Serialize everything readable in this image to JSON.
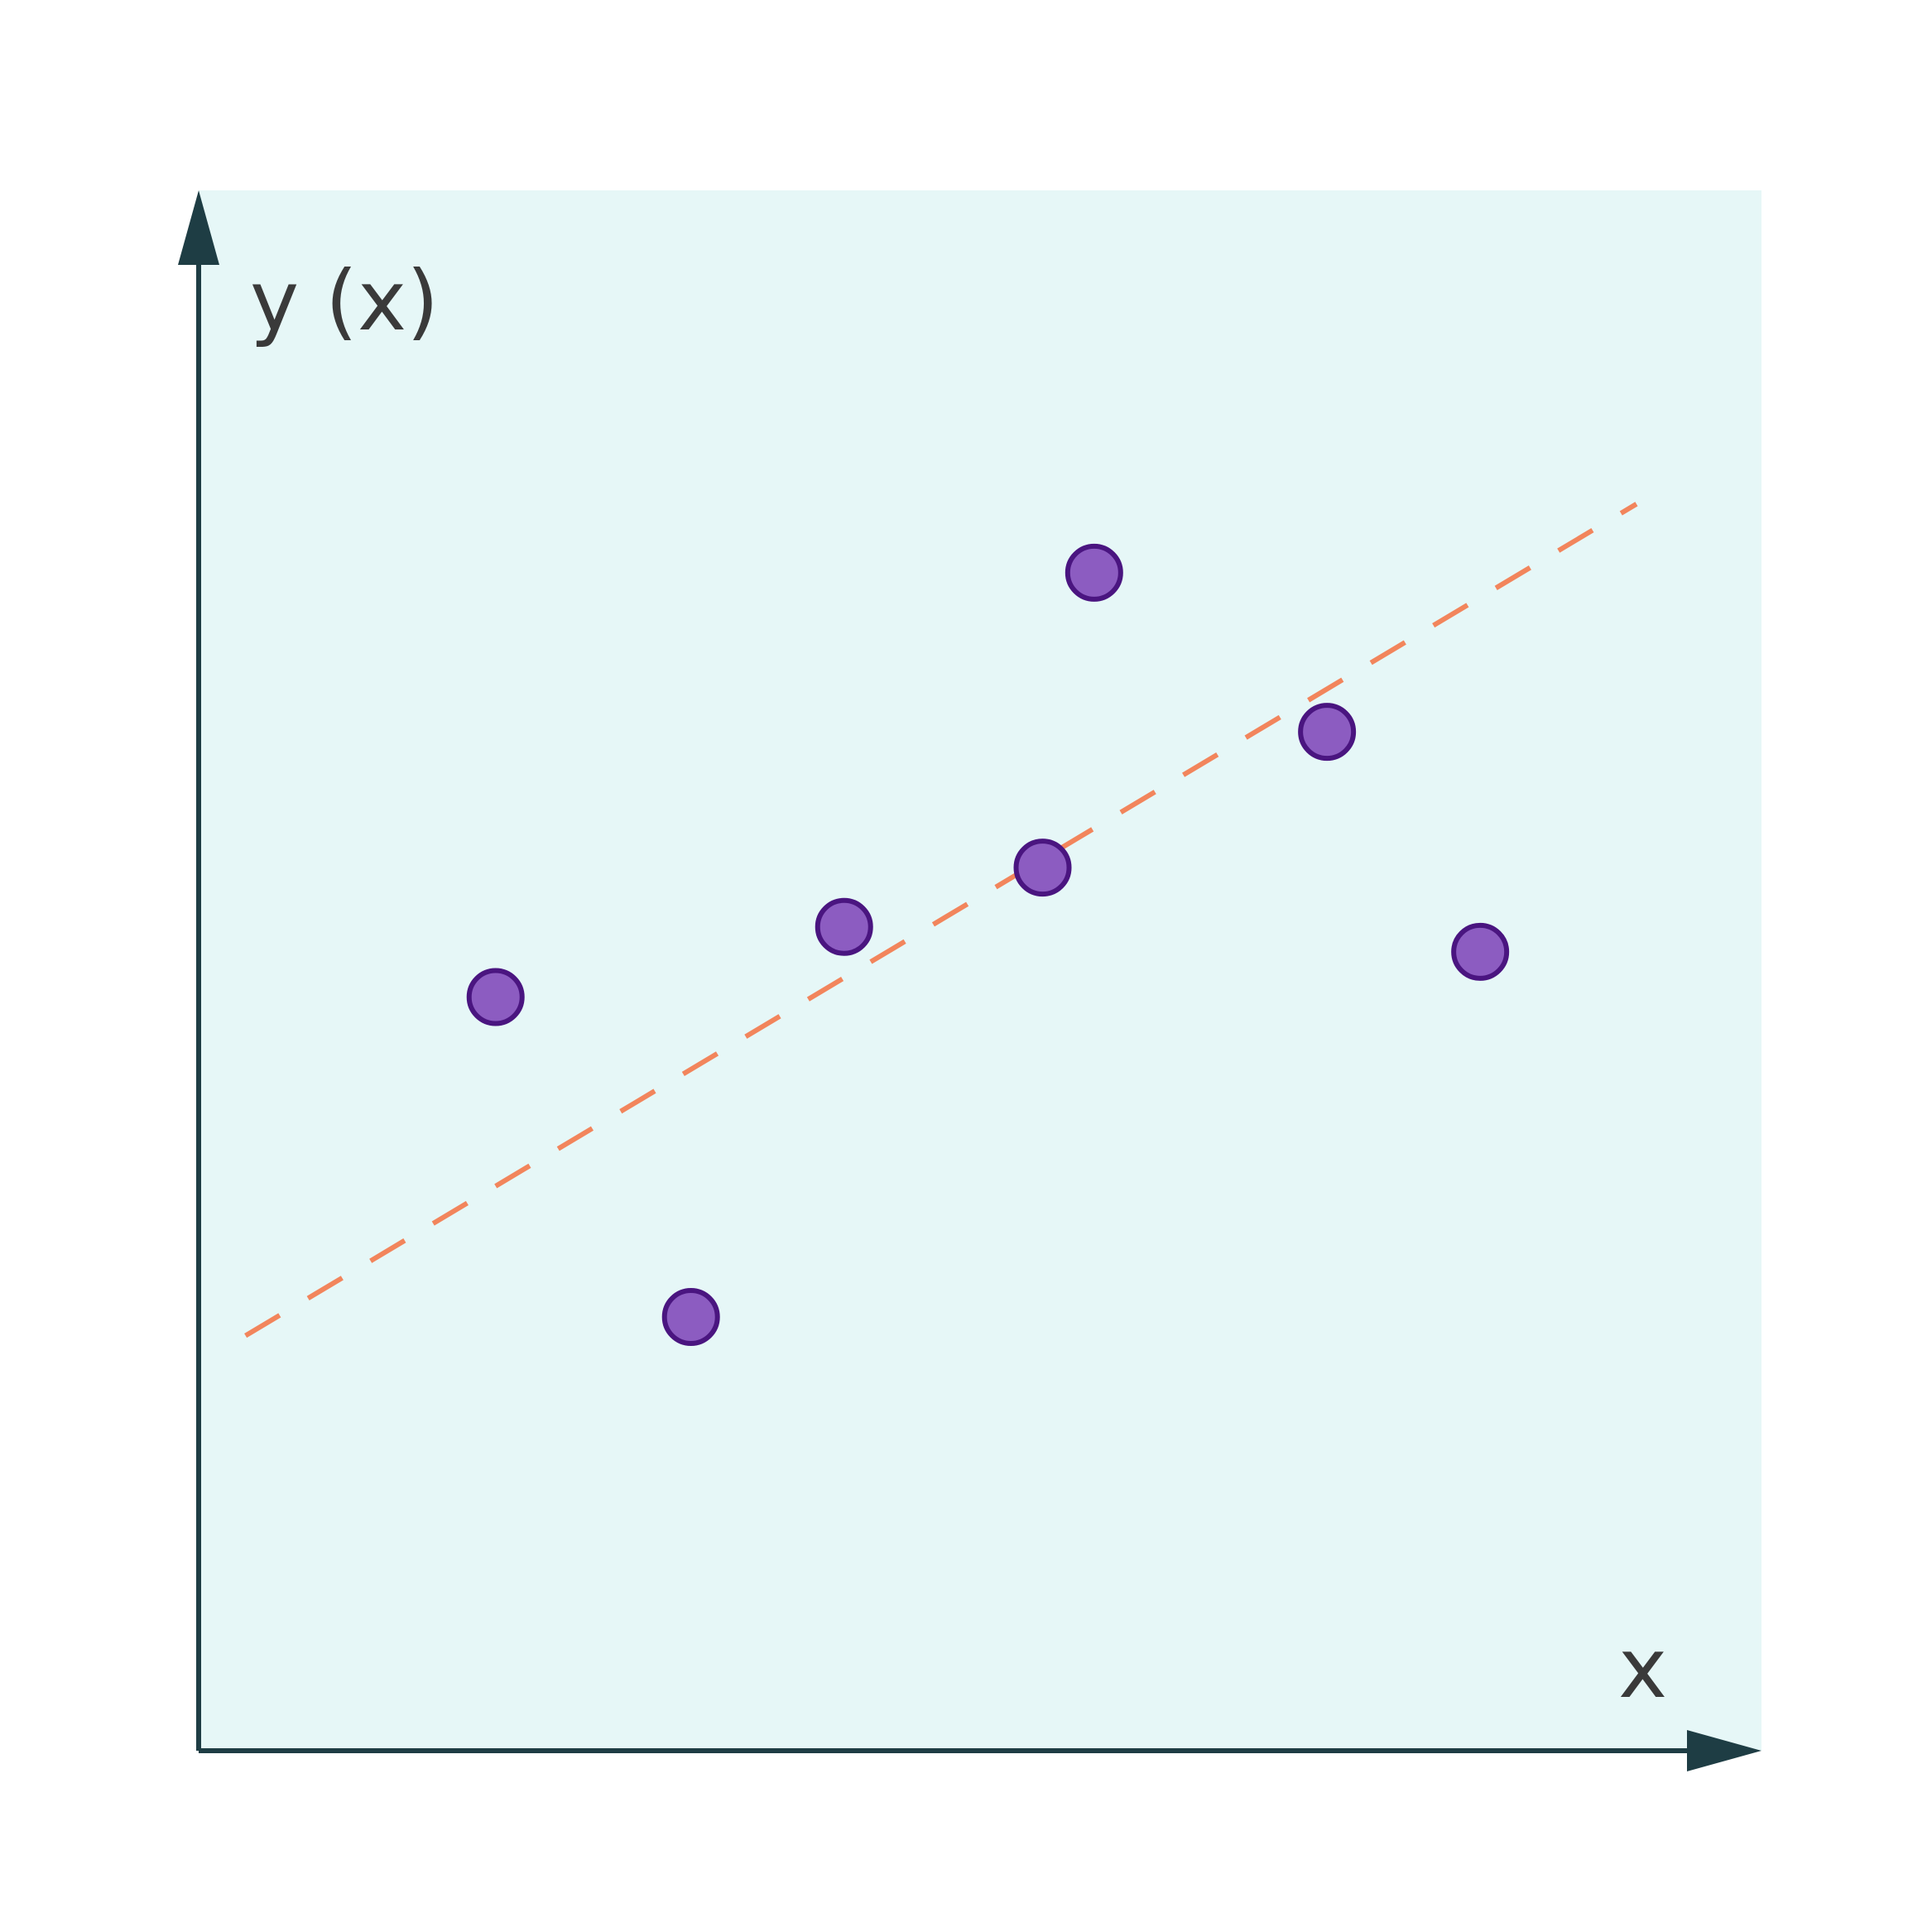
{
  "chart_data": {
    "type": "scatter",
    "title": "",
    "xlabel": "x",
    "ylabel": "y (x)",
    "xlim": [
      0,
      10
    ],
    "ylim": [
      0,
      10
    ],
    "grid": false,
    "ticks": "none",
    "series": [
      {
        "kind": "scatter",
        "x": [
          1.9,
          3.15,
          4.13,
          5.4,
          5.73,
          7.22,
          8.2
        ],
        "y": [
          4.83,
          2.78,
          5.28,
          5.66,
          7.55,
          6.53,
          5.12
        ]
      },
      {
        "kind": "line",
        "style": "dashed",
        "x": [
          0.3,
          9.2
        ],
        "y": [
          2.66,
          7.99
        ]
      }
    ]
  },
  "colors": {
    "plot_background": "#e6f7f7",
    "axis": "#1e3d44",
    "point_fill": "#8c5cc1",
    "point_stroke": "#4a1580",
    "trend_line": "#f2855c",
    "label_text": "#3a3a3a"
  }
}
